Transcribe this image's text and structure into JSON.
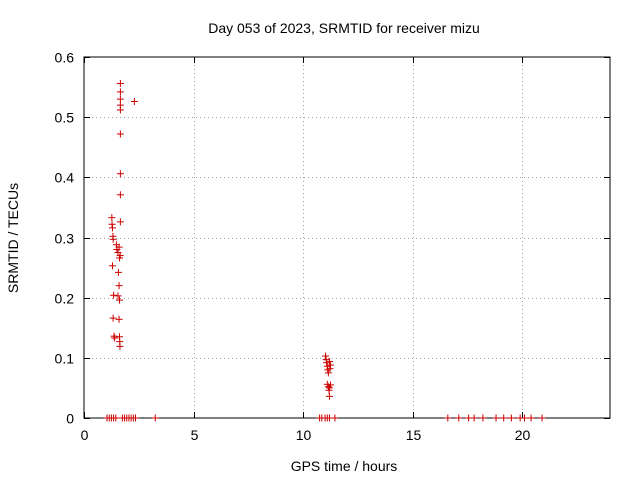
{
  "chart_data": {
    "type": "scatter",
    "title": "Day 053 of 2023, SRMTID for receiver mizu",
    "xlabel": "GPS time / hours",
    "ylabel": "SRMTID / TECUs",
    "xlim": [
      0,
      24
    ],
    "ylim": [
      0,
      0.6
    ],
    "x_ticks": [
      0,
      5,
      10,
      15,
      20
    ],
    "y_ticks": [
      0,
      0.1,
      0.2,
      0.3,
      0.4,
      0.5,
      0.6
    ],
    "x_tick_labels": [
      "0",
      "5",
      "10",
      "15",
      "20"
    ],
    "y_tick_labels": [
      "0",
      "0.1",
      "0.2",
      "0.3",
      "0.4",
      "0.5",
      "0.6"
    ],
    "grid": true,
    "marker": "+",
    "marker_color": "#cc0000",
    "series": [
      {
        "name": "SRMTID",
        "points": [
          [
            1.27,
            0.333
          ],
          [
            1.28,
            0.322
          ],
          [
            1.3,
            0.316
          ],
          [
            1.32,
            0.302
          ],
          [
            1.33,
            0.297
          ],
          [
            1.3,
            0.253
          ],
          [
            1.35,
            0.204
          ],
          [
            1.33,
            0.166
          ],
          [
            1.37,
            0.136
          ],
          [
            1.4,
            0.133
          ],
          [
            1.48,
            0.288
          ],
          [
            1.5,
            0.28
          ],
          [
            1.55,
            0.275
          ],
          [
            1.6,
            0.284
          ],
          [
            1.62,
            0.266
          ],
          [
            1.65,
            0.27
          ],
          [
            1.57,
            0.242
          ],
          [
            1.6,
            0.22
          ],
          [
            1.55,
            0.203
          ],
          [
            1.62,
            0.196
          ],
          [
            1.6,
            0.164
          ],
          [
            1.62,
            0.135
          ],
          [
            1.63,
            0.127
          ],
          [
            1.64,
            0.119
          ],
          [
            1.66,
            0.556
          ],
          [
            1.66,
            0.542
          ],
          [
            1.66,
            0.53
          ],
          [
            1.66,
            0.52
          ],
          [
            1.66,
            0.512
          ],
          [
            1.66,
            0.472
          ],
          [
            1.66,
            0.406
          ],
          [
            1.66,
            0.371
          ],
          [
            1.66,
            0.326
          ],
          [
            2.3,
            0.526
          ],
          [
            11.02,
            0.103
          ],
          [
            11.05,
            0.097
          ],
          [
            11.07,
            0.092
          ],
          [
            11.1,
            0.086
          ],
          [
            11.12,
            0.08
          ],
          [
            11.15,
            0.075
          ],
          [
            11.2,
            0.094
          ],
          [
            11.22,
            0.082
          ],
          [
            11.25,
            0.088
          ],
          [
            11.1,
            0.056
          ],
          [
            11.15,
            0.052
          ],
          [
            11.2,
            0.05
          ],
          [
            11.25,
            0.055
          ],
          [
            11.18,
            0.046
          ],
          [
            11.2,
            0.036
          ],
          [
            1.05,
            0
          ],
          [
            1.15,
            0
          ],
          [
            1.25,
            0
          ],
          [
            1.35,
            0
          ],
          [
            1.45,
            0
          ],
          [
            1.75,
            0
          ],
          [
            1.85,
            0
          ],
          [
            1.95,
            0
          ],
          [
            2.05,
            0
          ],
          [
            2.15,
            0
          ],
          [
            2.25,
            0
          ],
          [
            2.35,
            0
          ],
          [
            3.25,
            0
          ],
          [
            10.75,
            0
          ],
          [
            10.85,
            0
          ],
          [
            11.0,
            0
          ],
          [
            11.1,
            0
          ],
          [
            11.2,
            0
          ],
          [
            11.45,
            0
          ],
          [
            16.6,
            0
          ],
          [
            17.1,
            0
          ],
          [
            17.55,
            0
          ],
          [
            17.8,
            0
          ],
          [
            18.2,
            0
          ],
          [
            18.8,
            0
          ],
          [
            19.15,
            0
          ],
          [
            19.5,
            0
          ],
          [
            19.9,
            0
          ],
          [
            20.1,
            0
          ],
          [
            20.4,
            0
          ],
          [
            20.9,
            0
          ]
        ]
      }
    ]
  }
}
